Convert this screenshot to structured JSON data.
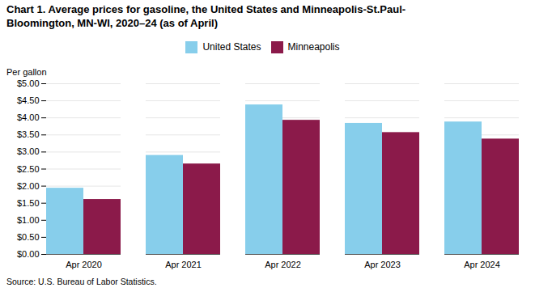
{
  "chart_data": {
    "type": "bar",
    "title": "Chart 1. Average prices for gasoline, the United States and Minneapolis-St.Paul-\nBloomington, MN-WI, 2020–24 (as of April)",
    "ylabel": "Per gallon",
    "source": "Source: U.S. Bureau of Labor Statistics.",
    "categories": [
      "Apr 2020",
      "Apr 2021",
      "Apr 2022",
      "Apr 2023",
      "Apr 2024"
    ],
    "series": [
      {
        "name": "United States",
        "color": "#87CEEB",
        "values": [
          1.94,
          2.9,
          4.38,
          3.84,
          3.88
        ]
      },
      {
        "name": "Minneapolis",
        "color": "#8B1A4A",
        "values": [
          1.61,
          2.65,
          3.93,
          3.57,
          3.38
        ]
      }
    ],
    "ylim": [
      0,
      5.0
    ],
    "yticks": [
      {
        "value": 0.0,
        "label": "$0.00"
      },
      {
        "value": 0.5,
        "label": "$0.50"
      },
      {
        "value": 1.0,
        "label": "$1.00"
      },
      {
        "value": 1.5,
        "label": "$1.50"
      },
      {
        "value": 2.0,
        "label": "$2.00"
      },
      {
        "value": 2.5,
        "label": "$2.50"
      },
      {
        "value": 3.0,
        "label": "$3.00"
      },
      {
        "value": 3.5,
        "label": "$3.50"
      },
      {
        "value": 4.0,
        "label": "$4.00"
      },
      {
        "value": 4.5,
        "label": "$4.50"
      },
      {
        "value": 5.0,
        "label": "$5.00"
      }
    ],
    "grid": true,
    "legend": "top"
  }
}
